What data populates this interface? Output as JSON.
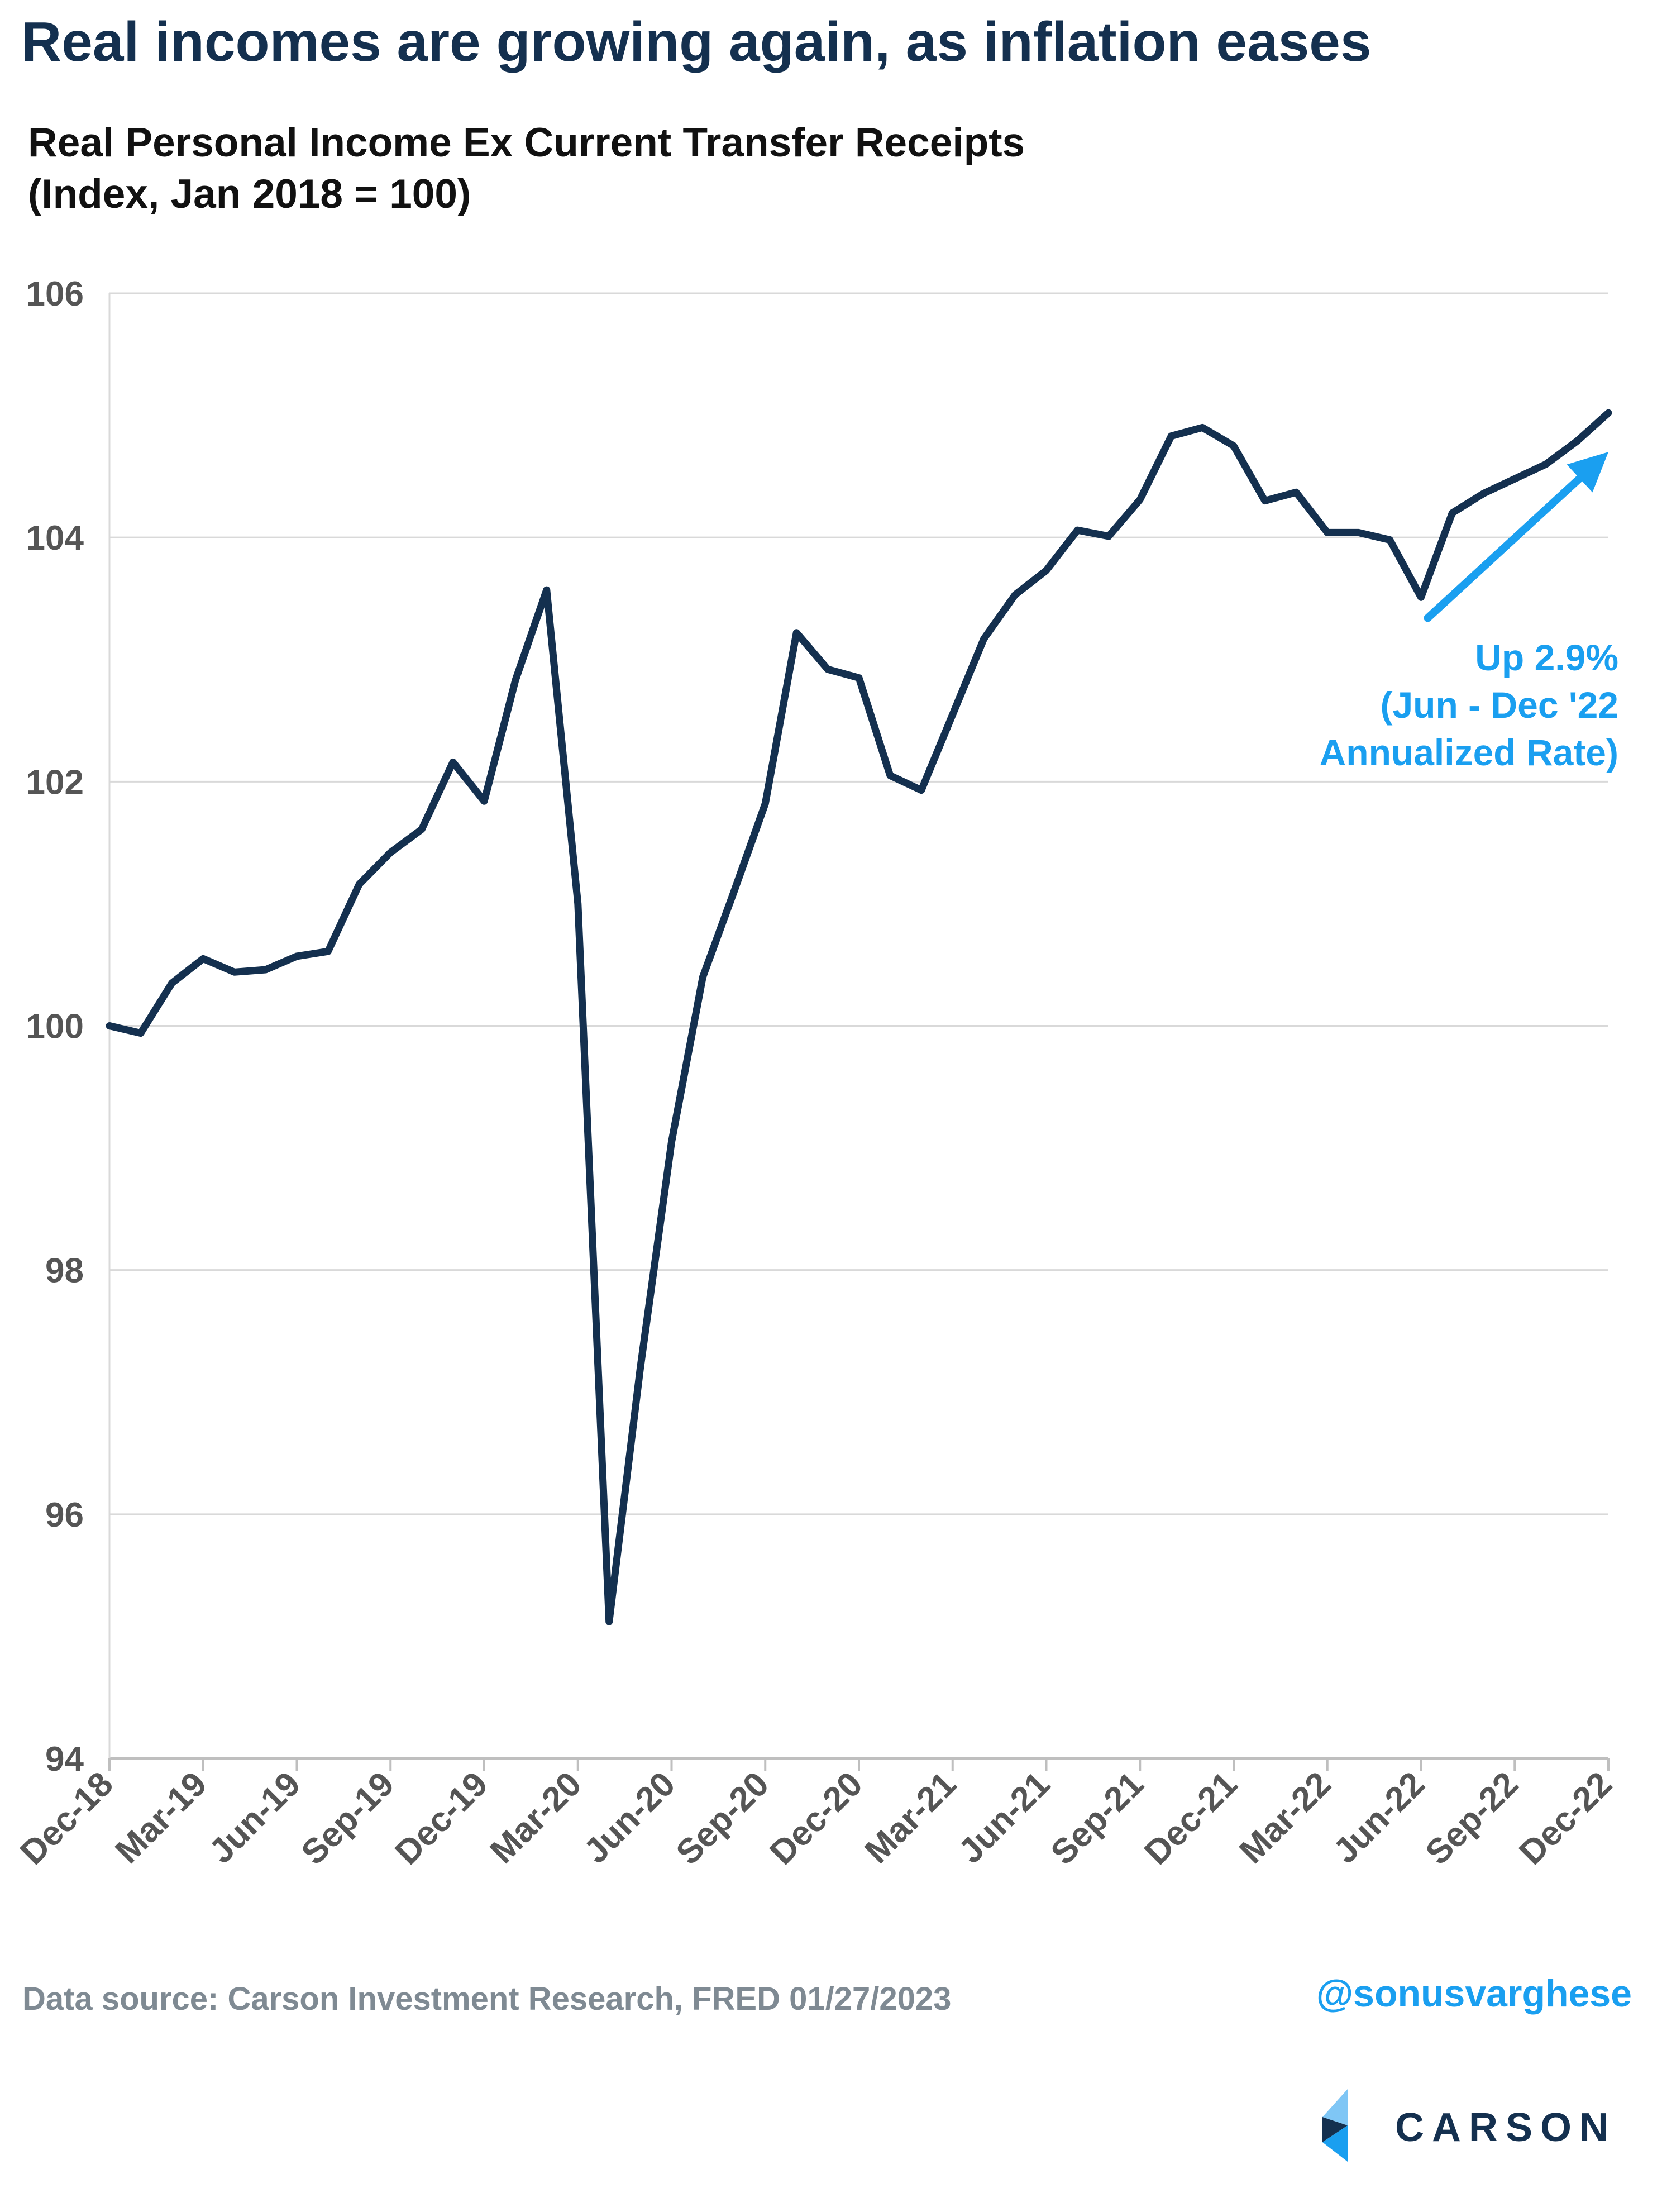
{
  "headline": "Real incomes are growing again, as inflation eases",
  "subtitle_line1": "Real Personal Income Ex Current Transfer Receipts",
  "subtitle_line2": "(Index, Jan 2018 = 100)",
  "annotation": [
    "Up 2.9%",
    "(Jun - Dec '22",
    "Annualized Rate)"
  ],
  "source": "Data source: Carson Investment Research, FRED   01/27/2023",
  "handle": "@sonusvarghese",
  "logo_text": "CARSON",
  "colors": {
    "line": "#14304f",
    "accent": "#1a9ff0",
    "grid": "#d9d9d9",
    "title": "#14304f"
  },
  "chart_data": {
    "type": "line",
    "title": "Real Personal Income Ex Current Transfer Receipts",
    "subtitle": "(Index, Jan 2018 = 100)",
    "xlabel": "",
    "ylabel": "",
    "ylim": [
      94,
      106
    ],
    "yticks": [
      94,
      96,
      98,
      100,
      102,
      104,
      106
    ],
    "grid": "horizontal",
    "x_tick_labels": [
      "Dec-18",
      "Mar-19",
      "Jun-19",
      "Sep-19",
      "Dec-19",
      "Mar-20",
      "Jun-20",
      "Sep-20",
      "Dec-20",
      "Mar-21",
      "Jun-21",
      "Sep-21",
      "Dec-21",
      "Mar-22",
      "Jun-22",
      "Sep-22",
      "Dec-22"
    ],
    "x": [
      "2018-12",
      "2019-01",
      "2019-02",
      "2019-03",
      "2019-04",
      "2019-05",
      "2019-06",
      "2019-07",
      "2019-08",
      "2019-09",
      "2019-10",
      "2019-11",
      "2019-12",
      "2020-01",
      "2020-02",
      "2020-03",
      "2020-04",
      "2020-05",
      "2020-06",
      "2020-07",
      "2020-08",
      "2020-09",
      "2020-10",
      "2020-11",
      "2020-12",
      "2021-01",
      "2021-02",
      "2021-03",
      "2021-04",
      "2021-05",
      "2021-06",
      "2021-07",
      "2021-08",
      "2021-09",
      "2021-10",
      "2021-11",
      "2021-12",
      "2022-01",
      "2022-02",
      "2022-03",
      "2022-04",
      "2022-05",
      "2022-06",
      "2022-07",
      "2022-08",
      "2022-09",
      "2022-10",
      "2022-11",
      "2022-12"
    ],
    "series": [
      {
        "values": [
          100.0,
          99.94,
          100.35,
          100.55,
          100.44,
          100.46,
          100.57,
          100.61,
          101.16,
          101.42,
          101.61,
          102.16,
          101.84,
          102.83,
          103.57,
          101.0,
          95.12,
          97.2,
          99.05,
          100.4,
          101.1,
          101.82,
          103.22,
          102.92,
          102.85,
          102.05,
          101.93,
          102.55,
          103.17,
          103.53,
          103.73,
          104.06,
          104.01,
          104.31,
          104.83,
          104.9,
          104.75,
          104.3,
          104.37,
          104.04,
          104.04,
          103.98,
          103.51,
          104.2,
          104.36,
          104.48,
          104.6,
          104.79,
          105.02
        ]
      }
    ],
    "annotation": {
      "text": "Up 2.9% (Jun - Dec '22 Annualized Rate)",
      "from": [
        "2022-06",
        103.34
      ],
      "to": [
        "2022-12",
        104.7
      ]
    }
  }
}
